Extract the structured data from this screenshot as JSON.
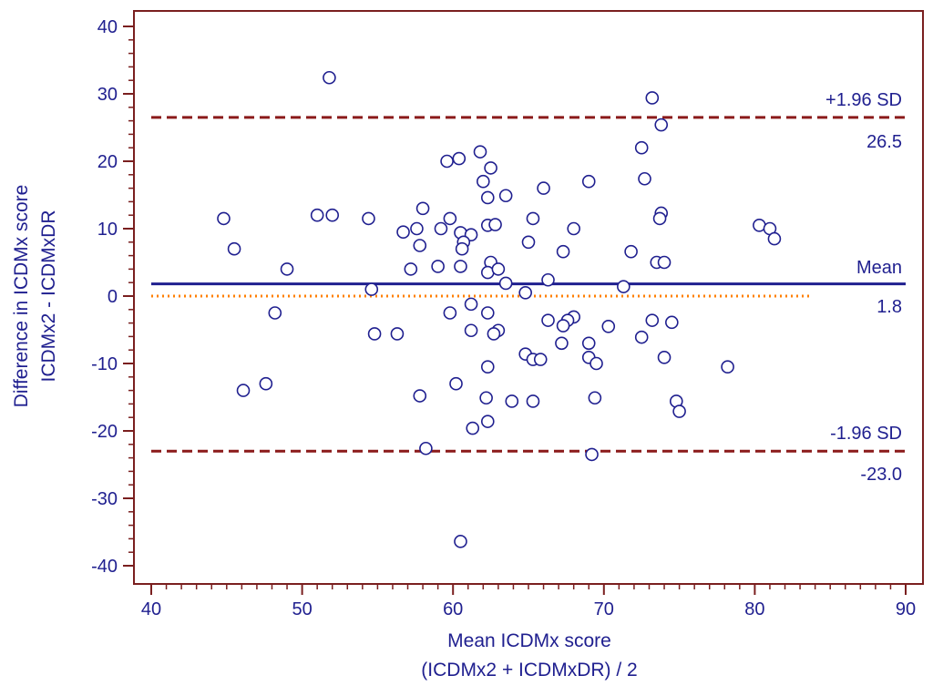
{
  "chart_data": {
    "type": "scatter",
    "subtype": "bland-altman",
    "title": "",
    "xlabel_line1": "Mean ICDMx score",
    "xlabel_line2": "(ICDMx2 + ICDMxDR) / 2",
    "ylabel_line1": "Difference in ICDMx score",
    "ylabel_line2": "ICDMx2 - ICDMxDR",
    "xlim": [
      40,
      90
    ],
    "ylim": [
      -42,
      42
    ],
    "x_ticks": [
      40,
      50,
      60,
      70,
      80,
      90
    ],
    "y_ticks": [
      -40,
      -30,
      -20,
      -10,
      0,
      10,
      20,
      30,
      40
    ],
    "grid": false,
    "colors": {
      "axis": "#7a1f1f",
      "text": "#1f1f8f",
      "points": "#1f1f8f",
      "mean_line": "#1f1f8f",
      "limit_lines": "#8b1a1a",
      "zero_line": "#ff7f00"
    },
    "reference_lines": {
      "upper": {
        "label": "+1.96 SD",
        "value_label": "26.5",
        "value": 26.5
      },
      "mean": {
        "label": "Mean",
        "value_label": "1.8",
        "value": 1.8
      },
      "lower": {
        "label": "-1.96 SD",
        "value_label": "-23.0",
        "value": -23.0
      },
      "zero": {
        "value": 0,
        "x_end": 83.6
      }
    },
    "points": [
      [
        51.8,
        32.4
      ],
      [
        73.2,
        29.4
      ],
      [
        73.8,
        25.4
      ],
      [
        72.5,
        22.0
      ],
      [
        61.8,
        21.4
      ],
      [
        59.6,
        20.0
      ],
      [
        60.4,
        20.4
      ],
      [
        62.5,
        19.0
      ],
      [
        72.7,
        17.4
      ],
      [
        62.0,
        17.0
      ],
      [
        69.0,
        17.0
      ],
      [
        66.0,
        16.0
      ],
      [
        62.3,
        14.6
      ],
      [
        63.5,
        14.9
      ],
      [
        58.0,
        13.0
      ],
      [
        73.8,
        12.3
      ],
      [
        44.8,
        11.5
      ],
      [
        51.0,
        12.0
      ],
      [
        52.0,
        12.0
      ],
      [
        54.4,
        11.5
      ],
      [
        59.8,
        11.5
      ],
      [
        65.3,
        11.5
      ],
      [
        73.7,
        11.5
      ],
      [
        62.3,
        10.5
      ],
      [
        62.8,
        10.6
      ],
      [
        68.0,
        10.0
      ],
      [
        80.3,
        10.5
      ],
      [
        81.0,
        10.0
      ],
      [
        81.3,
        8.5
      ],
      [
        56.7,
        9.5
      ],
      [
        57.6,
        10.0
      ],
      [
        59.2,
        10.0
      ],
      [
        60.5,
        9.4
      ],
      [
        61.2,
        9.1
      ],
      [
        60.7,
        8.0
      ],
      [
        65.0,
        8.0
      ],
      [
        57.8,
        7.5
      ],
      [
        60.6,
        7.0
      ],
      [
        67.3,
        6.6
      ],
      [
        71.8,
        6.6
      ],
      [
        45.5,
        7.0
      ],
      [
        62.5,
        5.0
      ],
      [
        73.5,
        5.0
      ],
      [
        74.0,
        5.0
      ],
      [
        49.0,
        4.0
      ],
      [
        57.2,
        4.0
      ],
      [
        59.0,
        4.4
      ],
      [
        60.5,
        4.4
      ],
      [
        62.3,
        3.5
      ],
      [
        63.0,
        4.0
      ],
      [
        66.3,
        2.4
      ],
      [
        63.5,
        1.9
      ],
      [
        71.3,
        1.4
      ],
      [
        54.6,
        1.0
      ],
      [
        64.8,
        0.5
      ],
      [
        61.2,
        -1.2
      ],
      [
        48.2,
        -2.5
      ],
      [
        59.8,
        -2.5
      ],
      [
        62.3,
        -2.5
      ],
      [
        66.3,
        -3.6
      ],
      [
        68.0,
        -3.1
      ],
      [
        67.6,
        -3.6
      ],
      [
        73.2,
        -3.6
      ],
      [
        74.5,
        -3.9
      ],
      [
        67.3,
        -4.4
      ],
      [
        70.3,
        -4.5
      ],
      [
        61.2,
        -5.1
      ],
      [
        63.0,
        -5.1
      ],
      [
        62.7,
        -5.6
      ],
      [
        54.8,
        -5.6
      ],
      [
        56.3,
        -5.6
      ],
      [
        72.5,
        -6.1
      ],
      [
        67.2,
        -7.0
      ],
      [
        69.0,
        -7.0
      ],
      [
        64.8,
        -8.6
      ],
      [
        65.3,
        -9.4
      ],
      [
        65.8,
        -9.4
      ],
      [
        69.0,
        -9.1
      ],
      [
        69.5,
        -10.0
      ],
      [
        74.0,
        -9.1
      ],
      [
        62.3,
        -10.5
      ],
      [
        78.2,
        -10.5
      ],
      [
        47.6,
        -13.0
      ],
      [
        46.1,
        -14.0
      ],
      [
        60.2,
        -13.0
      ],
      [
        57.8,
        -14.8
      ],
      [
        62.2,
        -15.1
      ],
      [
        63.9,
        -15.6
      ],
      [
        65.3,
        -15.6
      ],
      [
        69.4,
        -15.1
      ],
      [
        74.8,
        -15.6
      ],
      [
        75.0,
        -17.1
      ],
      [
        62.3,
        -18.6
      ],
      [
        61.3,
        -19.6
      ],
      [
        58.2,
        -22.6
      ],
      [
        69.2,
        -23.5
      ],
      [
        60.5,
        -36.4
      ]
    ]
  }
}
